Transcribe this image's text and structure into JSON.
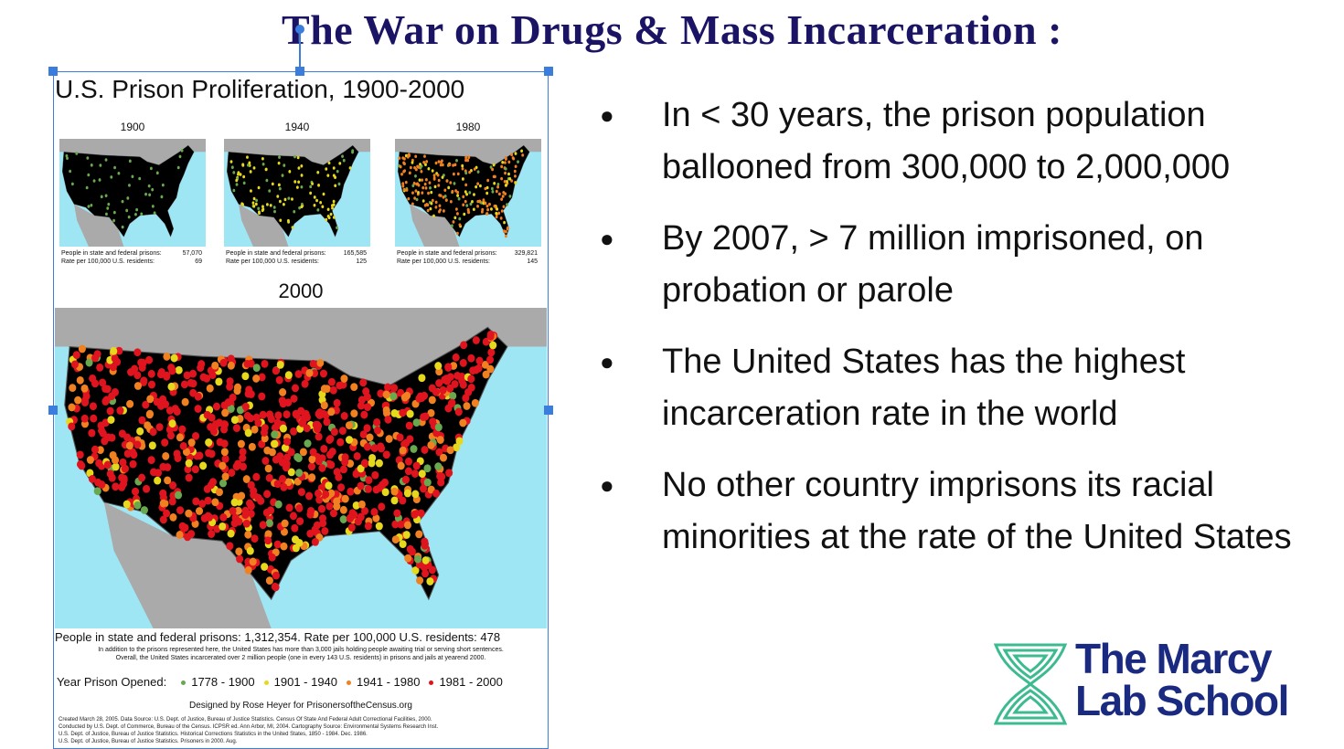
{
  "title": "The War on Drugs & Mass Incarceration :",
  "figure": {
    "title": "U.S. Prison Proliferation, 1900-2000",
    "panels": [
      {
        "year": "1900",
        "people_label": "People in state and federal prisons:",
        "people": "57,070",
        "rate_label": "Rate per 100,000 U.S. residents:",
        "rate": "69"
      },
      {
        "year": "1940",
        "people_label": "People in state and federal prisons:",
        "people": "165,585",
        "rate_label": "Rate per 100,000 U.S. residents:",
        "rate": "125"
      },
      {
        "year": "1980",
        "people_label": "People in state and federal prisons:",
        "people": "329,821",
        "rate_label": "Rate per 100,000 U.S. residents:",
        "rate": "145"
      }
    ],
    "main_year": "2000",
    "summary": "People in state and federal prisons:  1,312,354.  Rate per 100,000 U.S. residents:  478",
    "notes": [
      "In addition to the prisons represented here, the United States has more than 3,000 jails holding people awaiting trial or serving short sentences.",
      "Overall, the United States incarcerated over 2 million people (one in every 143 U.S. residents) in prisons and jails at yearend 2000."
    ],
    "legend_title": "Year Prison Opened:",
    "legend": [
      {
        "label": "1778 - 1900",
        "color": "#6aa84f"
      },
      {
        "label": "1901 - 1940",
        "color": "#e6d81c"
      },
      {
        "label": "1941 - 1980",
        "color": "#f08020"
      },
      {
        "label": "1981 - 2000",
        "color": "#e0141e"
      }
    ],
    "credit": "Designed by Rose Heyer for PrisonersoftheCensus.org",
    "sources": [
      "Created March 28, 2005.  Data Source:  U.S. Dept. of Justice,  Bureau of Justice Statistics.  Census Of State And Federal Adult Correctional Facilities, 2000.",
      "Conducted by U.S. Dept. of Commerce, Bureau of the Census. ICPSR ed. Ann Arbor, MI, 2004. Cartography Source: Environmental Systems Research Inst.",
      "U.S. Dept. of Justice,  Bureau of Justice Statistics.  Historical Corrections Statistics in the United States, 1850 - 1984. Dec. 1986.",
      "U.S. Dept. of Justice,  Bureau of Justice Statistics.  Prisoners in 2000. Aug."
    ]
  },
  "bullets": [
    "In  < 30 years, the prison population ballooned from 300,000 to 2,000,000",
    "By 2007, > 7 million imprisoned, on probation or parole",
    "The United States has the highest incarceration rate in the world",
    "No other country imprisons its racial minorities at the rate of the United States"
  ],
  "logo": {
    "line1": "The Marcy",
    "line2": "Lab School"
  }
}
